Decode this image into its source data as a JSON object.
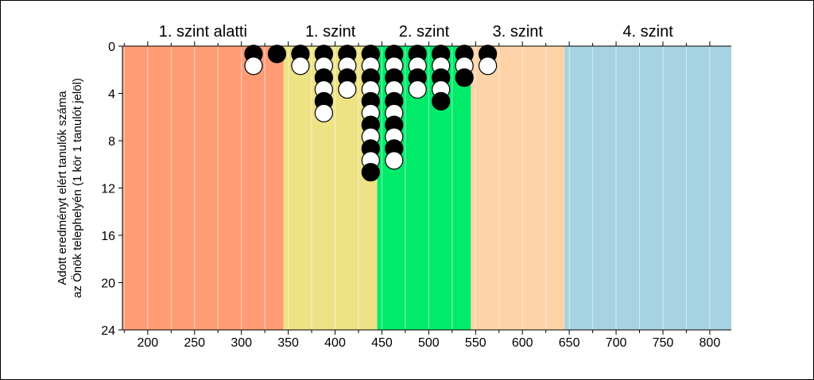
{
  "chart_data": {
    "type": "scatter",
    "xlim": [
      173,
      823
    ],
    "ylim": [
      0,
      24
    ],
    "x_ticks": [
      200,
      250,
      300,
      350,
      400,
      450,
      500,
      550,
      600,
      650,
      700,
      750,
      800
    ],
    "y_ticks": [
      0,
      4,
      8,
      12,
      16,
      20,
      24
    ],
    "y_inverted": true,
    "ylabel_lines": [
      "Adott eredményt elért tanulók száma",
      "az Önök telephelyén (1 kör 1 tanulót jelöl)"
    ],
    "levels": [
      {
        "label": "1. szint alatti",
        "from": 173,
        "to": 345,
        "color": "#FF9C75"
      },
      {
        "label": "1. szint",
        "from": 345,
        "to": 445,
        "color": "#EDE385"
      },
      {
        "label": "2. szint",
        "from": 445,
        "to": 545,
        "color": "#00EB6A"
      },
      {
        "label": "3. szint",
        "from": 545,
        "to": 645,
        "color": "#FFD3A8"
      },
      {
        "label": "4. szint",
        "from": 645,
        "to": 823,
        "color": "#A6D3E2"
      }
    ],
    "columns": [
      {
        "x": 313,
        "count": 2
      },
      {
        "x": 338,
        "count": 1
      },
      {
        "x": 363,
        "count": 2
      },
      {
        "x": 388,
        "count": 6
      },
      {
        "x": 413,
        "count": 4
      },
      {
        "x": 438,
        "count": 11
      },
      {
        "x": 463,
        "count": 10
      },
      {
        "x": 488,
        "count": 4
      },
      {
        "x": 513,
        "count": 5
      },
      {
        "x": 538,
        "count": 3
      },
      {
        "x": 563,
        "count": 2
      }
    ],
    "marker_colors": [
      "#000000",
      "#ffffff"
    ]
  }
}
